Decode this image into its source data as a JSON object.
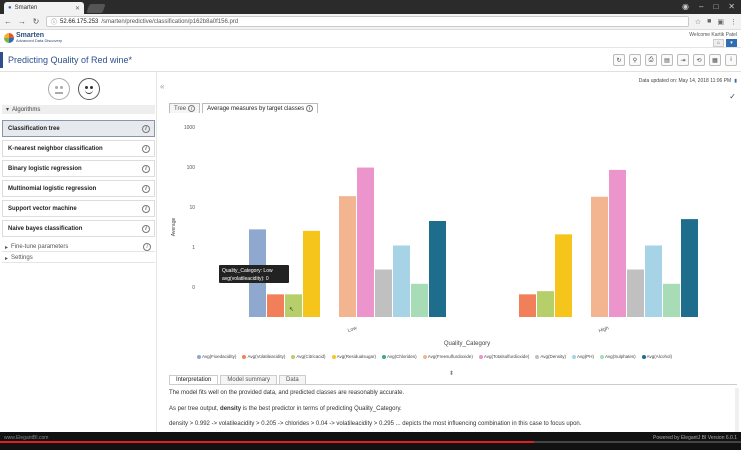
{
  "browser": {
    "tab_title": "Smarten",
    "url_host": "52.66.175.253",
    "url_path": "/smarten/predictive/classification/p162b8a0f156.prd"
  },
  "header": {
    "logo_name": "Smarten",
    "logo_sub": "Advanced Data Discovery",
    "welcome": "Welcome Kartik Patel"
  },
  "page": {
    "title": "Predicting Quality of Red wine*"
  },
  "left": {
    "algorithms_label": "Algorithms",
    "algorithms": [
      {
        "label": "Classification tree",
        "selected": true
      },
      {
        "label": "K-nearest neighbor classification",
        "selected": false
      },
      {
        "label": "Binary logistic regression",
        "selected": false
      },
      {
        "label": "Multinomial logistic regression",
        "selected": false
      },
      {
        "label": "Support vector machine",
        "selected": false
      },
      {
        "label": "Naive bayes classification",
        "selected": false
      }
    ],
    "fine_tune_label": "Fine-tune parameters",
    "settings_label": "Settings"
  },
  "main": {
    "updated": "Data updated on: May 14, 2018 11:06 PM",
    "tabs": [
      "Tree",
      "Average measures by target classes"
    ],
    "bottom_tabs": [
      "Interpretation",
      "Model summary",
      "Data"
    ],
    "interp_1": "The model fits well on the provided data, and predicted classes are reasonably accurate.",
    "interp_2_pre": "As per tree output, ",
    "interp_2_bold": "density",
    "interp_2_post": " is the best predictor in terms of predicting Quality_Category.",
    "interp_3": "density > 0.992 -> volatileacidity > 0.205 -> chlorides > 0.04 -> volatileacidity > 0.295 ... depicts the most influencing combination in this case to focus upon."
  },
  "tooltip": {
    "line1": "Quality_Category: Low",
    "line2": "avg(volatileacidity): 0"
  },
  "footer": {
    "left": "www.ElegantBI.com",
    "right": "Powered by ElegantJ BI Version 6.0.1",
    "progress": 0.72
  },
  "chart_data": {
    "type": "bar",
    "scale": "log",
    "categories": [
      "Low",
      "High"
    ],
    "xlabel": "Quality_Category",
    "ylabel": "Average",
    "yticks": [
      "1000",
      "100",
      "10",
      "1",
      "0"
    ],
    "series": [
      {
        "name": "Avg(Fixedacidity)",
        "color": "#8ea8cf",
        "values": [
          7,
          null
        ]
      },
      {
        "name": "Avg(Volatileacidity)",
        "color": "#f07f5a",
        "values": [
          0.3,
          0.3
        ]
      },
      {
        "name": "Avg(Citricacid)",
        "color": "#b7cf6a",
        "values": [
          0.3,
          0.35
        ]
      },
      {
        "name": "Avg(Residualsugar)",
        "color": "#f5c51c",
        "values": [
          6.5,
          5.5
        ]
      },
      {
        "name": "Avg(Chlorides)",
        "color": "#3faa82",
        "values": [
          0.045,
          0.035
        ]
      },
      {
        "name": "Avg(Freesulfurdioxide)",
        "color": "#f2b58f",
        "values": [
          35,
          34
        ]
      },
      {
        "name": "Avg(Totalsulfurdioxide)",
        "color": "#ec95cd",
        "values": [
          140,
          125
        ]
      },
      {
        "name": "Avg(Density)",
        "color": "#c0c0c0",
        "values": [
          1,
          1
        ]
      },
      {
        "name": "Avg(PH)",
        "color": "#a6d3e6",
        "values": [
          3.2,
          3.2
        ]
      },
      {
        "name": "Avg(Sulphates)",
        "color": "#a8dcb7",
        "values": [
          0.5,
          0.5
        ]
      },
      {
        "name": "Avg(Alcohol)",
        "color": "#1f6d8c",
        "values": [
          10.5,
          11.5
        ]
      }
    ]
  }
}
